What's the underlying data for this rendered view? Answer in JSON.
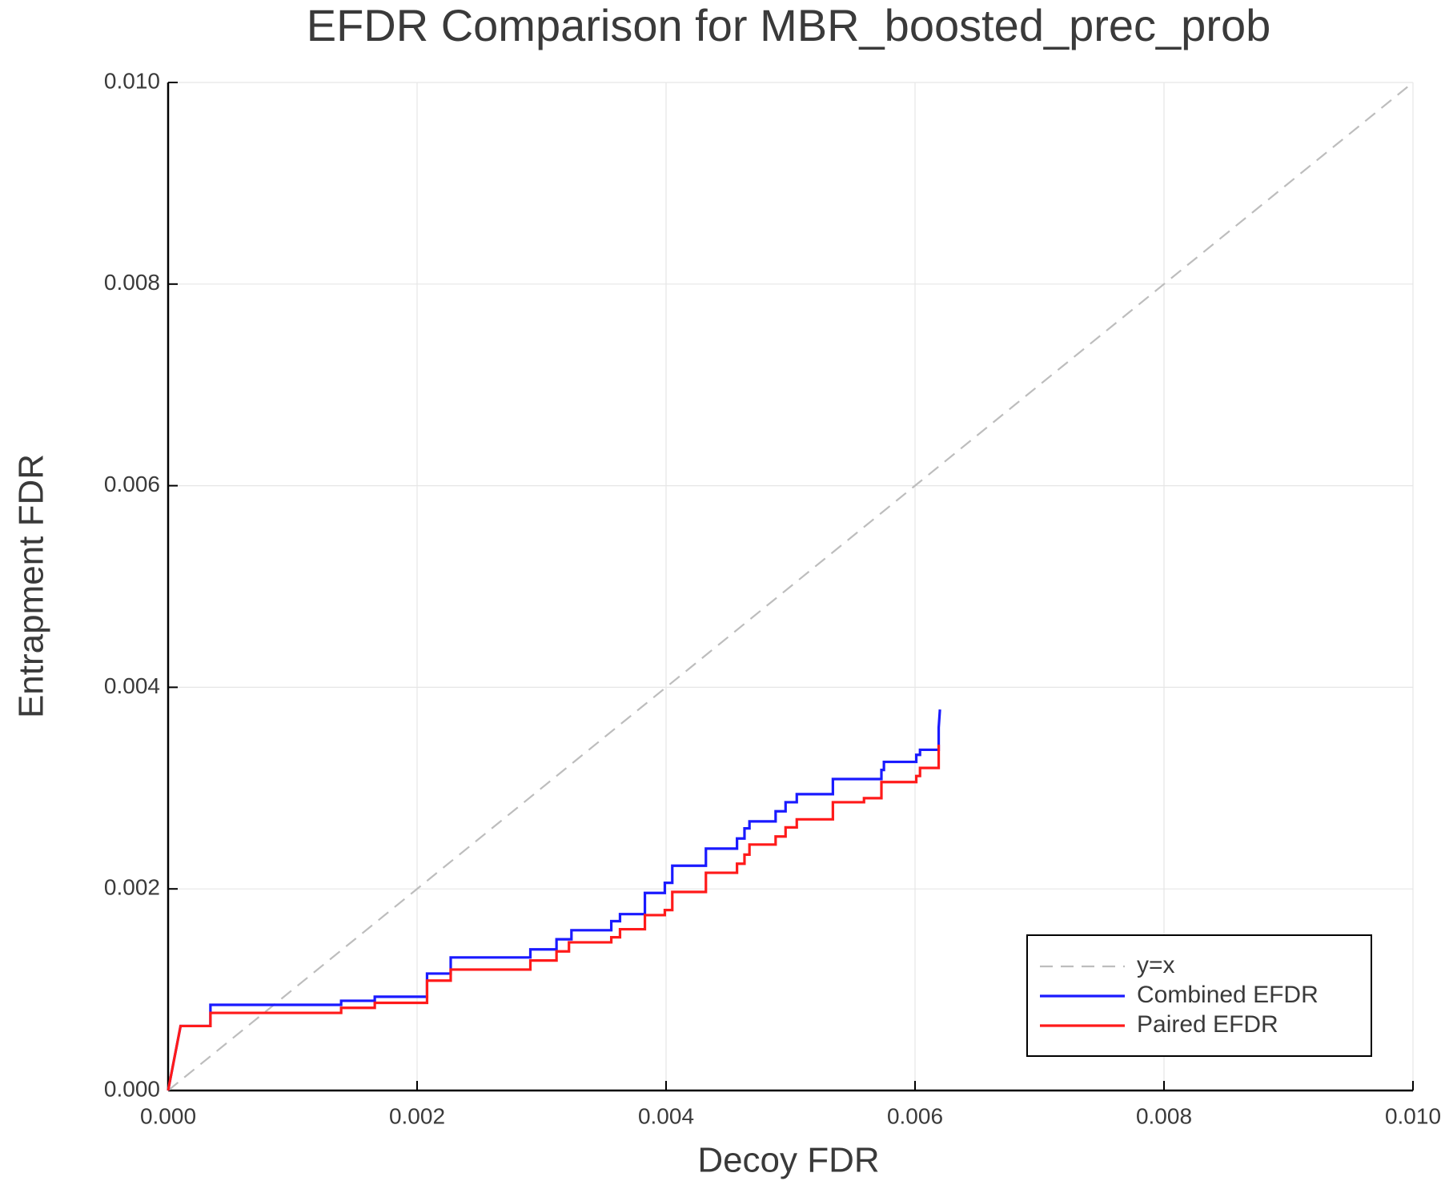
{
  "chart_data": {
    "type": "line",
    "title": "EFDR Comparison for MBR_boosted_prec_prob",
    "x_label": "Decoy FDR",
    "y_label": "Entrapment FDR",
    "xlim": [
      0,
      0.01
    ],
    "ylim": [
      0,
      0.01
    ],
    "xticks": [
      {
        "value": 0,
        "label": "0.000"
      },
      {
        "value": 0.002,
        "label": "0.002"
      },
      {
        "value": 0.004,
        "label": "0.004"
      },
      {
        "value": 0.006,
        "label": "0.006"
      },
      {
        "value": 0.008,
        "label": "0.008"
      },
      {
        "value": 0.01,
        "label": "0.010"
      }
    ],
    "yticks": [
      {
        "value": 0,
        "label": "0.000"
      },
      {
        "value": 0.002,
        "label": "0.002"
      },
      {
        "value": 0.004,
        "label": "0.004"
      },
      {
        "value": 0.006,
        "label": "0.006"
      },
      {
        "value": 0.008,
        "label": "0.008"
      },
      {
        "value": 0.01,
        "label": "0.010"
      }
    ],
    "grid": true,
    "legend": "lower right",
    "series": [
      {
        "name": "y=x",
        "color": "#bdbdbd",
        "dashed": true,
        "x": [
          0,
          0.01
        ],
        "values": [
          0,
          0.01
        ]
      },
      {
        "name": "Combined EFDR",
        "color": "#1a1aff",
        "dashed": false,
        "x": [
          0,
          0.0001,
          0.00034,
          0.00034,
          0.00139,
          0.00139,
          0.00166,
          0.00166,
          0.00208,
          0.00208,
          0.00227,
          0.00227,
          0.00291,
          0.00291,
          0.00312,
          0.00312,
          0.00324,
          0.00324,
          0.00356,
          0.00356,
          0.00363,
          0.00363,
          0.00383,
          0.00383,
          0.00399,
          0.00399,
          0.00405,
          0.00405,
          0.00432,
          0.00432,
          0.00457,
          0.00457,
          0.00463,
          0.00463,
          0.00467,
          0.00467,
          0.00488,
          0.00488,
          0.00496,
          0.00496,
          0.00505,
          0.00505,
          0.00534,
          0.00534,
          0.00573,
          0.00573,
          0.00575,
          0.00575,
          0.00601,
          0.00601,
          0.00604,
          0.00604,
          0.00619,
          0.00619,
          0.0062
        ],
        "values": [
          0,
          0.00064,
          0.00064,
          0.00085,
          0.00085,
          0.00089,
          0.00089,
          0.00093,
          0.00093,
          0.00116,
          0.00116,
          0.00132,
          0.00132,
          0.0014,
          0.0014,
          0.0015,
          0.0015,
          0.00159,
          0.00159,
          0.00168,
          0.00168,
          0.00175,
          0.00175,
          0.00196,
          0.00196,
          0.00206,
          0.00206,
          0.00223,
          0.00223,
          0.0024,
          0.0024,
          0.0025,
          0.0025,
          0.0026,
          0.0026,
          0.00267,
          0.00267,
          0.00277,
          0.00277,
          0.00286,
          0.00286,
          0.00294,
          0.00294,
          0.00309,
          0.00309,
          0.00318,
          0.00318,
          0.00326,
          0.00326,
          0.00333,
          0.00333,
          0.00338,
          0.00338,
          0.0036,
          0.00378
        ]
      },
      {
        "name": "Paired EFDR",
        "color": "#ff1a1a",
        "dashed": false,
        "x": [
          0,
          0.0001,
          0.00034,
          0.00034,
          0.00139,
          0.00139,
          0.00166,
          0.00166,
          0.00208,
          0.00208,
          0.00227,
          0.00227,
          0.00291,
          0.00291,
          0.00312,
          0.00312,
          0.00322,
          0.00322,
          0.00356,
          0.00356,
          0.00363,
          0.00363,
          0.00383,
          0.00383,
          0.00399,
          0.00399,
          0.00405,
          0.00405,
          0.00432,
          0.00432,
          0.00457,
          0.00457,
          0.00463,
          0.00463,
          0.00467,
          0.00467,
          0.00488,
          0.00488,
          0.00496,
          0.00496,
          0.00505,
          0.00505,
          0.00534,
          0.00534,
          0.00559,
          0.00559,
          0.00573,
          0.00573,
          0.00601,
          0.00601,
          0.00604,
          0.00604,
          0.00619,
          0.00619
        ],
        "values": [
          0,
          0.00064,
          0.00064,
          0.00077,
          0.00077,
          0.00082,
          0.00082,
          0.00087,
          0.00087,
          0.00109,
          0.00109,
          0.0012,
          0.0012,
          0.00129,
          0.00129,
          0.00138,
          0.00138,
          0.00147,
          0.00147,
          0.00152,
          0.00152,
          0.0016,
          0.0016,
          0.00174,
          0.00174,
          0.00179,
          0.00179,
          0.00197,
          0.00197,
          0.00216,
          0.00216,
          0.00225,
          0.00225,
          0.00234,
          0.00234,
          0.00244,
          0.00244,
          0.00252,
          0.00252,
          0.00261,
          0.00261,
          0.00269,
          0.00269,
          0.00286,
          0.00286,
          0.0029,
          0.0029,
          0.00306,
          0.00306,
          0.00312,
          0.00312,
          0.0032,
          0.0032,
          0.00343
        ]
      }
    ]
  }
}
